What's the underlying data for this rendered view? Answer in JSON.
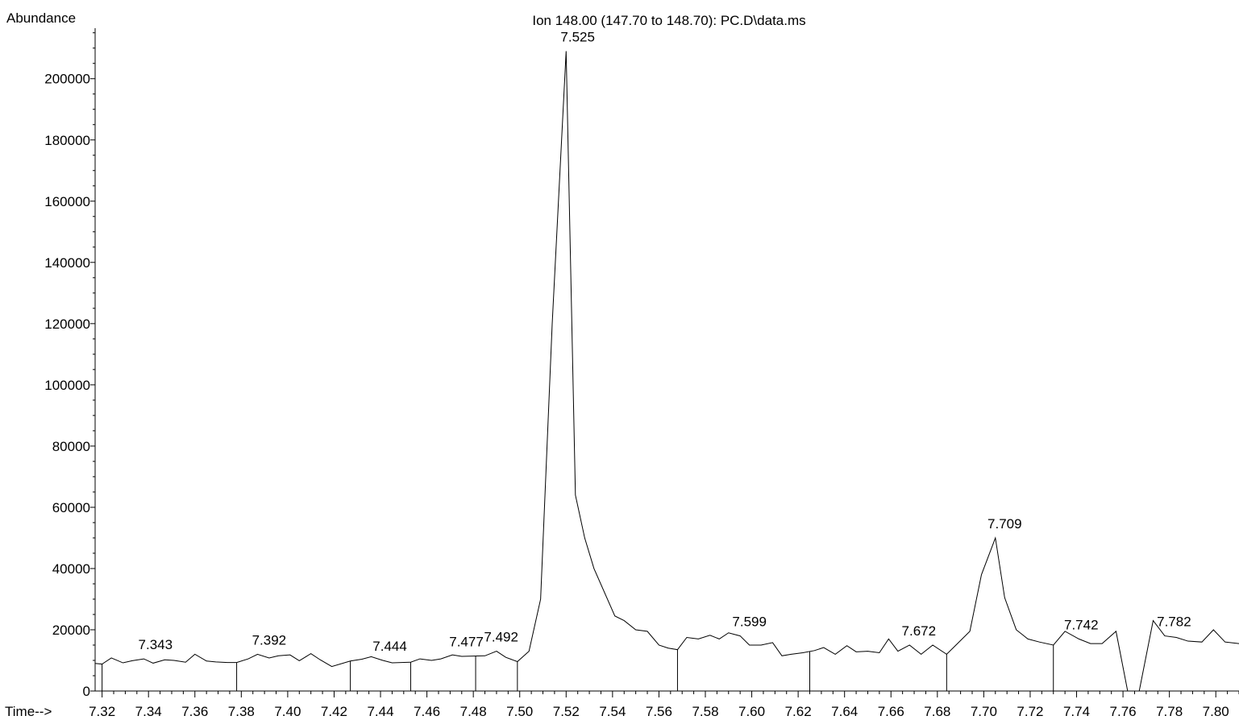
{
  "chart_data": {
    "type": "line",
    "title": "Ion 148.00 (147.70 to 148.70): PC.D\\data.ms",
    "ylabel": "Abundance",
    "xlabel": "Time-->",
    "color": "#000000",
    "xlim": [
      7.317,
      7.81
    ],
    "ylim": [
      0,
      216500
    ],
    "xticks": [
      7.32,
      7.34,
      7.36,
      7.38,
      {
        "value": 7.4,
        "label": "7.40"
      },
      7.42,
      7.44,
      7.46,
      7.48,
      {
        "value": 7.5,
        "label": "7.50"
      },
      7.52,
      7.54,
      7.56,
      7.58,
      {
        "value": 7.6,
        "label": "7.60"
      },
      7.62,
      7.64,
      7.66,
      7.68,
      {
        "value": 7.7,
        "label": "7.70"
      },
      7.72,
      7.74,
      7.76,
      7.78,
      {
        "value": 7.8,
        "label": "7.80"
      }
    ],
    "yticks": [
      0,
      20000,
      40000,
      60000,
      80000,
      100000,
      120000,
      140000,
      160000,
      180000,
      200000
    ],
    "x": [
      7.317,
      7.32,
      7.324,
      7.329,
      7.333,
      7.338,
      7.342,
      7.347,
      7.351,
      7.356,
      7.36,
      7.365,
      7.369,
      7.374,
      7.378,
      7.383,
      7.387,
      7.392,
      7.396,
      7.401,
      7.405,
      7.41,
      7.414,
      7.419,
      7.427,
      7.432,
      7.436,
      7.441,
      7.445,
      7.453,
      7.457,
      7.462,
      7.466,
      7.471,
      7.475,
      7.48,
      7.485,
      7.49,
      7.494,
      7.499,
      7.504,
      7.509,
      7.514,
      7.52,
      7.524,
      7.528,
      7.532,
      7.541,
      7.545,
      7.55,
      7.555,
      7.56,
      7.564,
      7.568,
      7.572,
      7.577,
      7.582,
      7.586,
      7.59,
      7.595,
      7.599,
      7.604,
      7.609,
      7.613,
      7.617,
      7.622,
      7.627,
      7.631,
      7.636,
      7.641,
      7.645,
      7.65,
      7.655,
      7.659,
      7.663,
      7.668,
      7.673,
      7.678,
      7.684,
      7.688,
      7.694,
      7.699,
      7.705,
      7.709,
      7.714,
      7.719,
      7.724,
      7.73,
      7.735,
      7.741,
      7.746,
      7.751,
      7.757,
      7.762,
      7.767,
      7.773,
      7.778,
      7.783,
      7.788,
      7.794,
      7.799,
      7.804,
      7.81
    ],
    "values": [
      9000,
      8800,
      10800,
      9200,
      9900,
      10500,
      9100,
      10200,
      10000,
      9400,
      12000,
      9800,
      9500,
      9300,
      9300,
      10500,
      12000,
      10800,
      11500,
      11800,
      9900,
      12200,
      10200,
      8000,
      9800,
      10400,
      11200,
      10000,
      9200,
      9400,
      10500,
      10000,
      10500,
      11800,
      11300,
      11400,
      11500,
      13000,
      11000,
      9600,
      13000,
      30000,
      120000,
      209000,
      64000,
      50000,
      40000,
      24500,
      23000,
      20000,
      19500,
      15000,
      14000,
      13500,
      17500,
      17000,
      18200,
      17000,
      19000,
      18000,
      15000,
      15000,
      15800,
      11500,
      12000,
      12500,
      13200,
      14200,
      12000,
      14800,
      12800,
      13000,
      12500,
      17000,
      13000,
      15000,
      12000,
      15000,
      12000,
      15000,
      19500,
      38000,
      50000,
      30500,
      20000,
      17000,
      16000,
      15000,
      19500,
      17000,
      15500,
      15500,
      19500,
      0,
      0,
      23000,
      18000,
      17500,
      16300,
      16000,
      20000,
      16000,
      15500
    ],
    "markers": [
      7.32,
      7.378,
      7.427,
      7.453,
      7.481,
      7.499,
      7.568,
      7.625,
      7.684,
      7.73
    ],
    "peaks": [
      7.343,
      7.392,
      7.444,
      7.477,
      7.492,
      7.525,
      7.599,
      7.672,
      7.709,
      7.742,
      7.782
    ]
  }
}
